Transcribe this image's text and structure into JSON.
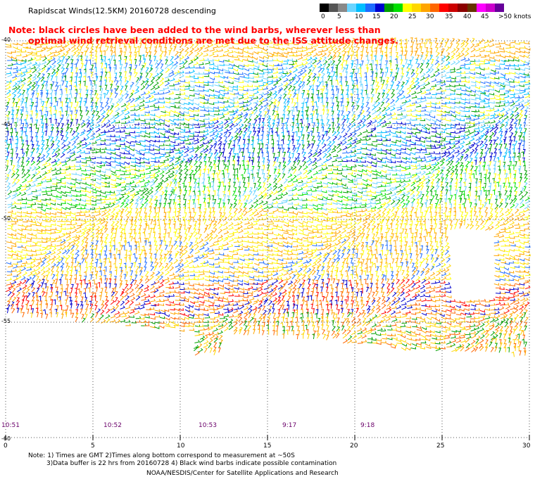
{
  "title": "Rapidscat Winds(12.5KM) 20160728 descending",
  "note": {
    "line1": "Note: black circles have been added to the wind barbs, wherever less than",
    "line2": "optimal wind retrieval conditions are met due to the ISS attitude changes."
  },
  "legend": {
    "colors": [
      "#000000",
      "#555555",
      "#888888",
      "#6ad4ff",
      "#00bfff",
      "#1e6cff",
      "#0000cd",
      "#00a000",
      "#00e000",
      "#ffff00",
      "#ffd700",
      "#ffa500",
      "#ff6600",
      "#ff0000",
      "#cc0000",
      "#8b0000",
      "#663300",
      "#ff00ff",
      "#cc00cc",
      "#660099"
    ],
    "labels": [
      "0",
      "5",
      "10",
      "15",
      "20",
      "25",
      "30",
      "35",
      "40",
      "45",
      ">50 knots"
    ]
  },
  "y_axis": {
    "labels": [
      "-40",
      "-45",
      "-50",
      "-55",
      "-60"
    ]
  },
  "x_axis": {
    "labels": [
      "0",
      "5",
      "10",
      "15",
      "20",
      "25",
      "30"
    ]
  },
  "pass_times": [
    "10:51",
    "10:52",
    "10:53",
    "9:17",
    "9:18"
  ],
  "footer": {
    "line1": "Note: 1) Times are GMT 2)Times along bottom correspond to measurement at ~50S",
    "line2": "3)Data buffer is 22 hrs from 20160728 4) Black wind barbs indicate possible contamination",
    "line3": "NOAA/NESDIS/Center for Satellite Applications and Research"
  }
}
